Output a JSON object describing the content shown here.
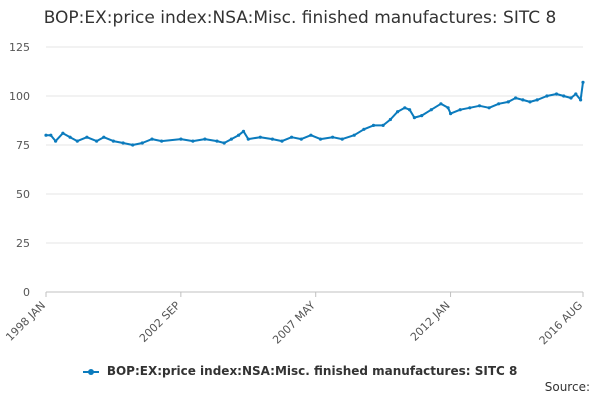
{
  "page": {
    "source_label": "Source:"
  },
  "chart_data": {
    "type": "line",
    "title": "BOP:EX:price index:NSA:Misc. finished manufactures: SITC 8",
    "xlabel": "",
    "ylabel": "",
    "ylim": [
      0,
      125
    ],
    "yticks": [
      0,
      25,
      50,
      75,
      100,
      125
    ],
    "xlim": [
      "1998 JAN",
      "2016 AUG"
    ],
    "xticks": [
      "1998 JAN",
      "2002 SEP",
      "2007 MAY",
      "2012 JAN",
      "2016 AUG"
    ],
    "grid": true,
    "legend_position": "bottom",
    "colors": {
      "series": "#0b7bbd",
      "grid": "#e6e6e6",
      "axis": "#c0c0c0"
    },
    "series": [
      {
        "name": "BOP:EX:price index:NSA:Misc. finished manufactures: SITC 8",
        "points": [
          [
            "1998 JAN",
            80
          ],
          [
            "1998 MAR",
            80
          ],
          [
            "1998 MAY",
            77
          ],
          [
            "1998 AUG",
            81
          ],
          [
            "1998 NOV",
            79
          ],
          [
            "1999 FEB",
            77
          ],
          [
            "1999 JUN",
            79
          ],
          [
            "1999 OCT",
            77
          ],
          [
            "2000 JAN",
            79
          ],
          [
            "2000 MAY",
            77
          ],
          [
            "2000 SEP",
            76
          ],
          [
            "2001 JAN",
            75
          ],
          [
            "2001 MAY",
            76
          ],
          [
            "2001 SEP",
            78
          ],
          [
            "2002 JAN",
            77
          ],
          [
            "2002 SEP",
            78
          ],
          [
            "2003 FEB",
            77
          ],
          [
            "2003 JUL",
            78
          ],
          [
            "2003 DEC",
            77
          ],
          [
            "2004 MAR",
            76
          ],
          [
            "2004 JUN",
            78
          ],
          [
            "2004 SEP",
            80
          ],
          [
            "2004 NOV",
            82
          ],
          [
            "2005 JAN",
            78
          ],
          [
            "2005 JUN",
            79
          ],
          [
            "2005 NOV",
            78
          ],
          [
            "2006 MAR",
            77
          ],
          [
            "2006 JUL",
            79
          ],
          [
            "2006 NOV",
            78
          ],
          [
            "2007 MAR",
            80
          ],
          [
            "2007 JUL",
            78
          ],
          [
            "2007 DEC",
            79
          ],
          [
            "2008 APR",
            78
          ],
          [
            "2008 SEP",
            80
          ],
          [
            "2009 JAN",
            83
          ],
          [
            "2009 MAY",
            85
          ],
          [
            "2009 SEP",
            85
          ],
          [
            "2009 DEC",
            88
          ],
          [
            "2010 MAR",
            92
          ],
          [
            "2010 JUN",
            94
          ],
          [
            "2010 AUG",
            93
          ],
          [
            "2010 OCT",
            89
          ],
          [
            "2011 JAN",
            90
          ],
          [
            "2011 MAY",
            93
          ],
          [
            "2011 SEP",
            96
          ],
          [
            "2011 DEC",
            94
          ],
          [
            "2012 JAN",
            91
          ],
          [
            "2012 MAY",
            93
          ],
          [
            "2012 SEP",
            94
          ],
          [
            "2013 JAN",
            95
          ],
          [
            "2013 MAY",
            94
          ],
          [
            "2013 SEP",
            96
          ],
          [
            "2014 JAN",
            97
          ],
          [
            "2014 APR",
            99
          ],
          [
            "2014 JUL",
            98
          ],
          [
            "2014 OCT",
            97
          ],
          [
            "2015 JAN",
            98
          ],
          [
            "2015 MAY",
            100
          ],
          [
            "2015 SEP",
            101
          ],
          [
            "2015 DEC",
            100
          ],
          [
            "2016 MAR",
            99
          ],
          [
            "2016 MAY",
            101
          ],
          [
            "2016 JUL",
            98
          ],
          [
            "2016 AUG",
            107
          ]
        ]
      }
    ]
  }
}
